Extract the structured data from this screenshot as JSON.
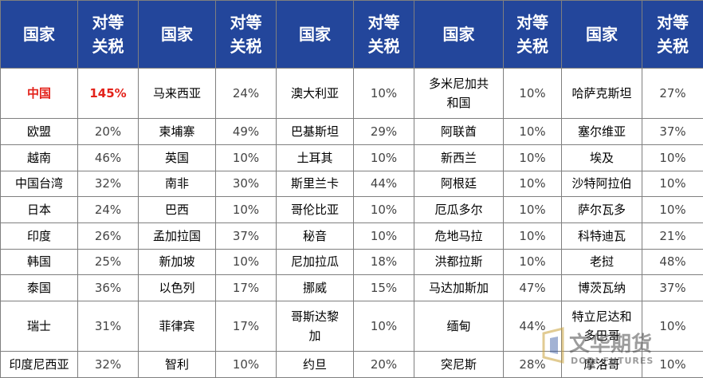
{
  "table": {
    "headers": [
      "国家",
      "对等\n关税",
      "国家",
      "对等\n关税",
      "国家",
      "对等\n关税",
      "国家",
      "对等\n关税",
      "国家",
      "对等\n关税"
    ],
    "rows": [
      [
        "中国",
        "145%",
        "马来西亚",
        "24%",
        "澳大利亚",
        "10%",
        "多米尼加共\n和国",
        "10%",
        "哈萨克斯坦",
        "27%"
      ],
      [
        "欧盟",
        "20%",
        "柬埔寨",
        "49%",
        "巴基斯坦",
        "29%",
        "阿联酋",
        "10%",
        "塞尔维亚",
        "37%"
      ],
      [
        "越南",
        "46%",
        "英国",
        "10%",
        "土耳其",
        "10%",
        "新西兰",
        "10%",
        "埃及",
        "10%"
      ],
      [
        "中国台湾",
        "32%",
        "南非",
        "30%",
        "斯里兰卡",
        "44%",
        "阿根廷",
        "10%",
        "沙特阿拉伯",
        "10%"
      ],
      [
        "日本",
        "24%",
        "巴西",
        "10%",
        "哥伦比亚",
        "10%",
        "厄瓜多尔",
        "10%",
        "萨尔瓦多",
        "10%"
      ],
      [
        "印度",
        "26%",
        "孟加拉国",
        "37%",
        "秘音",
        "10%",
        "危地马拉",
        "10%",
        "科特迪瓦",
        "21%"
      ],
      [
        "韩国",
        "25%",
        "新加坡",
        "10%",
        "尼加拉瓜",
        "18%",
        "洪都拉斯",
        "10%",
        "老挝",
        "48%"
      ],
      [
        "泰国",
        "36%",
        "以色列",
        "17%",
        "挪威",
        "15%",
        "马达加斯加",
        "47%",
        "博茨瓦纳",
        "37%"
      ],
      [
        "瑞士",
        "31%",
        "菲律宾",
        "17%",
        "哥斯达黎\n加",
        "10%",
        "缅甸",
        "44%",
        "特立尼达和\n多巴哥",
        "10%"
      ],
      [
        "印度尼西亚",
        "32%",
        "智利",
        "10%",
        "约旦",
        "20%",
        "突尼斯",
        "28%",
        "摩洛哥",
        "10%"
      ]
    ]
  },
  "watermark": {
    "text": "文华期货",
    "subtext": "DODI FUTURES"
  },
  "colors": {
    "header_bg": "#23469b",
    "header_text": "#ffffff",
    "highlight": "#e3221a",
    "grid": "#7f7f7f"
  }
}
